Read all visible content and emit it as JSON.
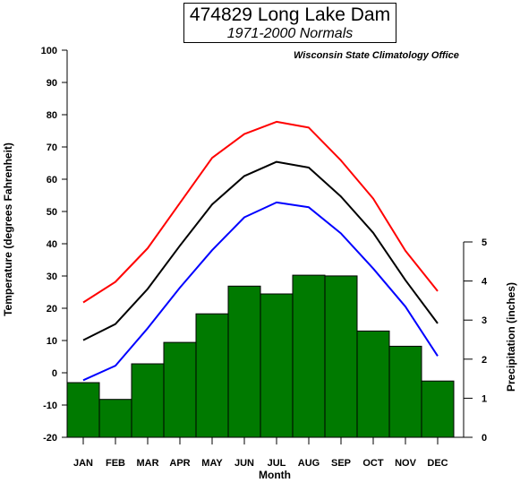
{
  "chart_data": {
    "type": "bar+line",
    "title": "474829 Long Lake Dam",
    "subtitle": "1971-2000 Normals",
    "source": "Wisconsin State Climatology Office",
    "xlabel": "Month",
    "ylabel_left": "Temperature (degrees Fahrenheit)",
    "ylabel_right": "Precipitation (inches)",
    "categories": [
      "JAN",
      "FEB",
      "MAR",
      "APR",
      "MAY",
      "JUN",
      "JUL",
      "AUG",
      "SEP",
      "OCT",
      "NOV",
      "DEC"
    ],
    "ylim_left": [
      -20,
      100
    ],
    "yticks_left": [
      -20,
      -10,
      0,
      10,
      20,
      30,
      40,
      50,
      60,
      70,
      80,
      90,
      100
    ],
    "ylim_right": [
      0,
      5
    ],
    "yticks_right": [
      0,
      1,
      2,
      3,
      4,
      5
    ],
    "bars": {
      "name": "Precipitation",
      "axis": "right",
      "color": "#007a00",
      "values": [
        1.4,
        0.97,
        1.88,
        2.43,
        3.16,
        3.87,
        3.67,
        4.15,
        4.13,
        2.72,
        2.33,
        1.44
      ]
    },
    "series": [
      {
        "axis": "left",
        "color": "#ff0000",
        "values": [
          21.8,
          28.2,
          38.6,
          52.6,
          66.6,
          74.0,
          77.8,
          76.0,
          65.8,
          54.0,
          37.8,
          25.3
        ]
      },
      {
        "axis": "left",
        "color": "#000000",
        "values": [
          10.1,
          15.1,
          26.0,
          39.4,
          52.2,
          61.0,
          65.4,
          63.6,
          54.6,
          43.4,
          28.7,
          15.3
        ]
      },
      {
        "axis": "left",
        "color": "#0000ff",
        "values": [
          -2.3,
          2.2,
          13.8,
          26.4,
          38.0,
          48.2,
          52.8,
          51.3,
          43.2,
          32.3,
          20.5,
          5.2
        ]
      }
    ]
  }
}
